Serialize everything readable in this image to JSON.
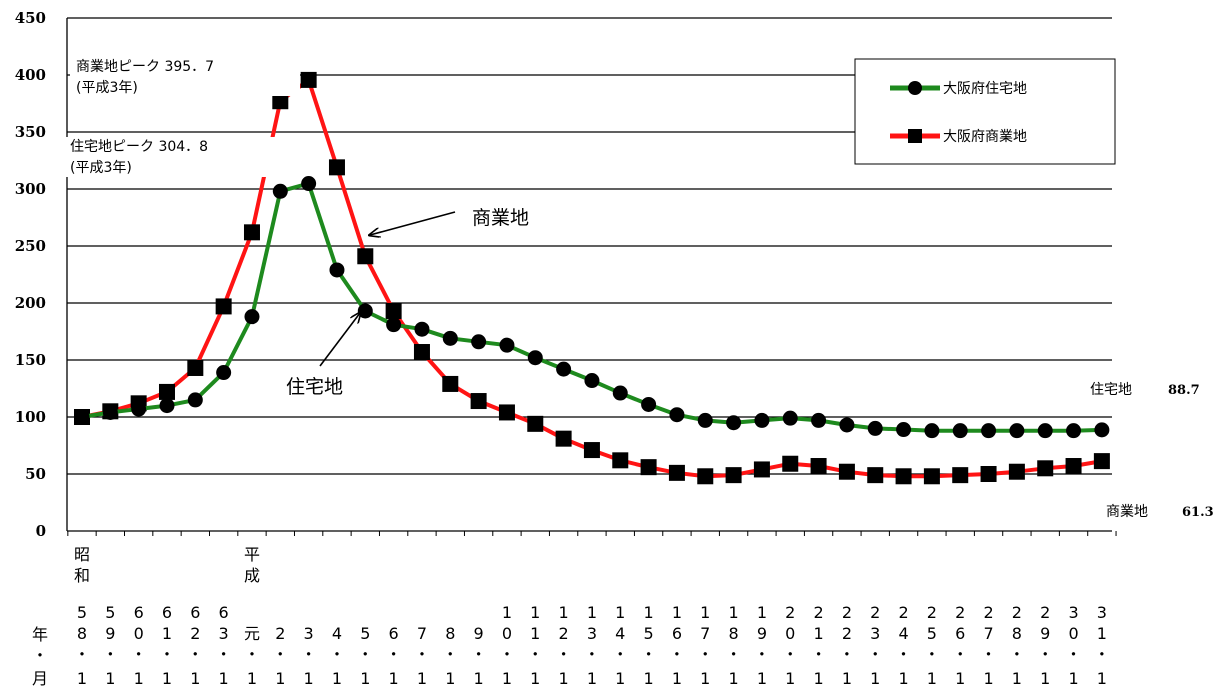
{
  "chart_data": {
    "type": "line",
    "ylim": [
      0,
      450
    ],
    "yticks": [
      "0",
      "50",
      "100",
      "150",
      "200",
      "250",
      "300",
      "350",
      "400",
      "450"
    ],
    "grid": true,
    "legend_position": "top-right",
    "x": [
      "58",
      "59",
      "60",
      "61",
      "62",
      "63",
      "元",
      "2",
      "3",
      "4",
      "5",
      "6",
      "7",
      "8",
      "9",
      "10",
      "11",
      "12",
      "13",
      "14",
      "15",
      "16",
      "17",
      "18",
      "19",
      "20",
      "21",
      "22",
      "23",
      "24",
      "25",
      "26",
      "27",
      "28",
      "29",
      "30",
      "31"
    ],
    "x_label_rows": [
      [
        "5",
        "5",
        "6",
        "6",
        "6",
        "6",
        "",
        "",
        "",
        "",
        "",
        "",
        "",
        "",
        "",
        "1",
        "1",
        "1",
        "1",
        "1",
        "1",
        "1",
        "1",
        "1",
        "1",
        "2",
        "2",
        "2",
        "2",
        "2",
        "2",
        "2",
        "2",
        "2",
        "2",
        "3",
        "3"
      ],
      [
        "8",
        "9",
        "0",
        "1",
        "2",
        "3",
        "元",
        "2",
        "3",
        "4",
        "5",
        "6",
        "7",
        "8",
        "9",
        "0",
        "1",
        "2",
        "3",
        "4",
        "5",
        "6",
        "7",
        "8",
        "9",
        "0",
        "1",
        "2",
        "3",
        "4",
        "5",
        "6",
        "7",
        "8",
        "9",
        "0",
        "1"
      ]
    ],
    "era_labels": [
      {
        "index": 0,
        "chars": [
          "昭",
          "和"
        ]
      },
      {
        "index": 6,
        "chars": [
          "平",
          "成"
        ]
      }
    ],
    "row_label_chars": [
      "年",
      "・",
      "月"
    ],
    "dot_char": "・",
    "month_char": "1",
    "series": [
      {
        "name": "大阪府住宅地",
        "color": "#1e8a1e",
        "marker": "circle",
        "values": [
          100,
          104,
          107,
          110,
          115,
          139,
          188,
          298,
          304.8,
          229,
          193,
          181,
          177,
          169,
          166,
          163,
          152,
          142,
          132,
          121,
          111,
          102,
          97,
          95,
          97,
          99,
          97,
          93,
          90,
          89,
          88,
          88,
          88,
          88,
          88,
          88,
          88.7
        ]
      },
      {
        "name": "大阪府商業地",
        "color": "#ff1414",
        "marker": "square",
        "values": [
          100,
          105,
          112,
          122,
          143,
          197,
          262,
          377,
          395.7,
          319,
          241,
          193,
          157,
          129,
          114,
          104,
          94,
          81,
          71,
          62,
          56,
          51,
          48,
          49,
          54,
          59,
          57,
          52,
          49,
          48,
          48,
          49,
          50,
          52,
          55,
          57,
          61.3
        ]
      }
    ],
    "annotations": {
      "commercial_peak_line1": "商業地ピーク 395．7",
      "commercial_peak_line2": "(平成3年)",
      "residential_peak_line1": "住宅地ピーク 304．8",
      "residential_peak_line2": "(平成3年)",
      "commercial_arrow_label": "商業地",
      "residential_arrow_label": "住宅地",
      "residential_end_label": "住宅地",
      "residential_end_value": "88.7",
      "commercial_end_label": "商業地",
      "commercial_end_value": "61.3"
    }
  }
}
